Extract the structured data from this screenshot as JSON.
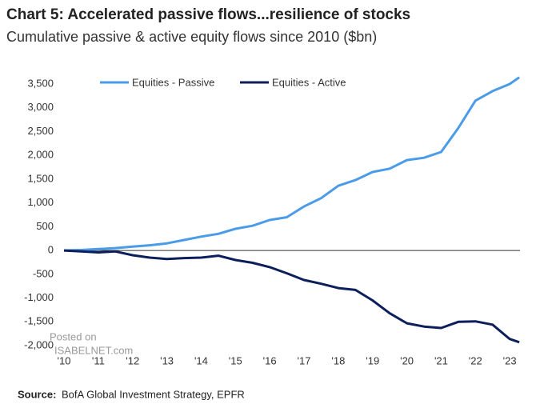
{
  "chart_data": {
    "type": "line",
    "title": "Chart 5: Accelerated passive flows...resilience of stocks",
    "subtitle": "Cumulative passive & active equity flows since 2010 ($bn)",
    "source_label": "Source:",
    "source": "BofA Global Investment Strategy, EPFR",
    "watermark": [
      "Posted on",
      "ISABELNET.com"
    ],
    "x": [
      2010,
      2010.5,
      2011,
      2011.5,
      2012,
      2012.5,
      2013,
      2013.5,
      2014,
      2014.5,
      2015,
      2015.5,
      2016,
      2016.5,
      2017,
      2017.5,
      2018,
      2018.5,
      2019,
      2019.5,
      2020,
      2020.5,
      2021,
      2021.5,
      2022,
      2022.5,
      2023,
      2023.28
    ],
    "series": [
      {
        "name": "Equities - Passive",
        "color": "#4a9be8",
        "values": [
          0,
          10,
          30,
          50,
          80,
          110,
          150,
          220,
          290,
          350,
          455,
          520,
          640,
          700,
          925,
          1100,
          1360,
          1480,
          1650,
          1720,
          1900,
          1950,
          2070,
          2575,
          3150,
          3350,
          3500,
          3640
        ]
      },
      {
        "name": "Equities - Active",
        "color": "#0c1f5c",
        "values": [
          0,
          -20,
          -40,
          -20,
          -100,
          -150,
          -180,
          -160,
          -150,
          -110,
          -200,
          -260,
          -350,
          -480,
          -620,
          -700,
          -790,
          -830,
          -1050,
          -1320,
          -1530,
          -1600,
          -1630,
          -1500,
          -1490,
          -1560,
          -1860,
          -1930
        ]
      }
    ],
    "xlim": [
      2010,
      2023.3
    ],
    "xticks": [
      {
        "value": 2010,
        "label": "'10"
      },
      {
        "value": 2011,
        "label": "'11"
      },
      {
        "value": 2012,
        "label": "'12"
      },
      {
        "value": 2013,
        "label": "'13"
      },
      {
        "value": 2014,
        "label": "'14"
      },
      {
        "value": 2015,
        "label": "'15"
      },
      {
        "value": 2016,
        "label": "'16"
      },
      {
        "value": 2017,
        "label": "'17"
      },
      {
        "value": 2018,
        "label": "'18"
      },
      {
        "value": 2019,
        "label": "'19"
      },
      {
        "value": 2020,
        "label": "'20"
      },
      {
        "value": 2021,
        "label": "'21"
      },
      {
        "value": 2022,
        "label": "'22"
      },
      {
        "value": 2023,
        "label": "'23"
      }
    ],
    "ylim": [
      -2000,
      3500
    ],
    "yticks": [
      {
        "value": -2000,
        "label": "-2,000"
      },
      {
        "value": -1500,
        "label": "-1,500"
      },
      {
        "value": -1000,
        "label": "-1,000"
      },
      -500,
      0,
      500,
      {
        "value": 1000,
        "label": "1,000"
      },
      {
        "value": 1500,
        "label": "1,500"
      },
      {
        "value": 2000,
        "label": "2,000"
      },
      {
        "value": 2500,
        "label": "2,500"
      },
      {
        "value": 3000,
        "label": "3,000"
      },
      {
        "value": 3500,
        "label": "3,500"
      }
    ],
    "zero_line": true
  }
}
